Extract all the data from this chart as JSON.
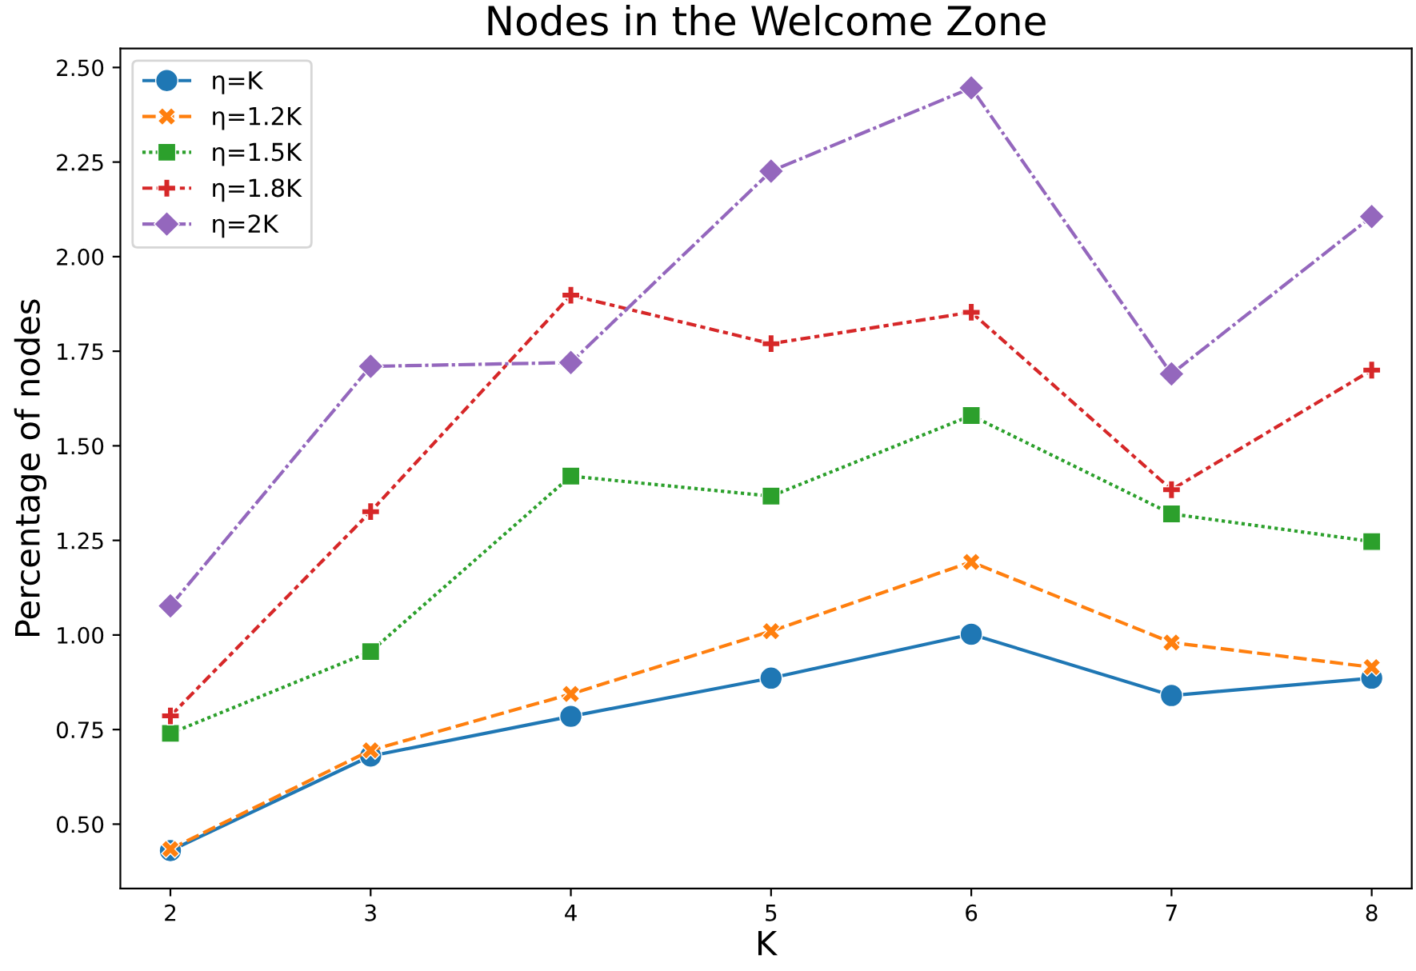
{
  "chart_data": {
    "type": "line",
    "title": "Nodes in the Welcome Zone",
    "xlabel": "K",
    "ylabel": "Percentage of nodes",
    "x": [
      2,
      3,
      4,
      5,
      6,
      7,
      8
    ],
    "series": [
      {
        "name": "η=K",
        "color": "#1f77b4",
        "marker": "circle",
        "line_style": "solid",
        "values": [
          0.43,
          0.68,
          0.785,
          0.886,
          1.002,
          0.84,
          0.886
        ]
      },
      {
        "name": "η=1.2K",
        "color": "#ff7f0e",
        "marker": "cross",
        "line_style": "dashed",
        "values": [
          0.434,
          0.695,
          0.844,
          1.01,
          1.193,
          0.98,
          0.915
        ]
      },
      {
        "name": "η=1.5K",
        "color": "#2ca02c",
        "marker": "square",
        "line_style": "dotted",
        "values": [
          0.74,
          0.956,
          1.42,
          1.367,
          1.58,
          1.32,
          1.247
        ]
      },
      {
        "name": "η=1.8K",
        "color": "#d62728",
        "marker": "plus",
        "line_style": "dashdot",
        "values": [
          0.786,
          1.326,
          1.898,
          1.77,
          1.853,
          1.384,
          1.7
        ]
      },
      {
        "name": "η=2K",
        "color": "#9467bd",
        "marker": "diamond",
        "line_style": "dashdot",
        "values": [
          1.077,
          1.71,
          1.72,
          2.226,
          2.446,
          1.69,
          2.106
        ]
      }
    ],
    "xlim": [
      1.75,
      8.2
    ],
    "xticks": [
      2,
      3,
      4,
      5,
      6,
      7,
      8
    ],
    "ylim": [
      0.33,
      2.55
    ],
    "yticks": [
      {
        "value": 0.5,
        "label": "0.50"
      },
      {
        "value": 0.75,
        "label": "0.75"
      },
      {
        "value": 1.0,
        "label": "1.00"
      },
      {
        "value": 1.25,
        "label": "1.25"
      },
      {
        "value": 1.5,
        "label": "1.50"
      },
      {
        "value": 1.75,
        "label": "1.75"
      },
      {
        "value": 2.0,
        "label": "2.00"
      },
      {
        "value": 2.25,
        "label": "2.25"
      },
      {
        "value": 2.5,
        "label": "2.50"
      }
    ],
    "grid": false,
    "legend": "top left"
  }
}
